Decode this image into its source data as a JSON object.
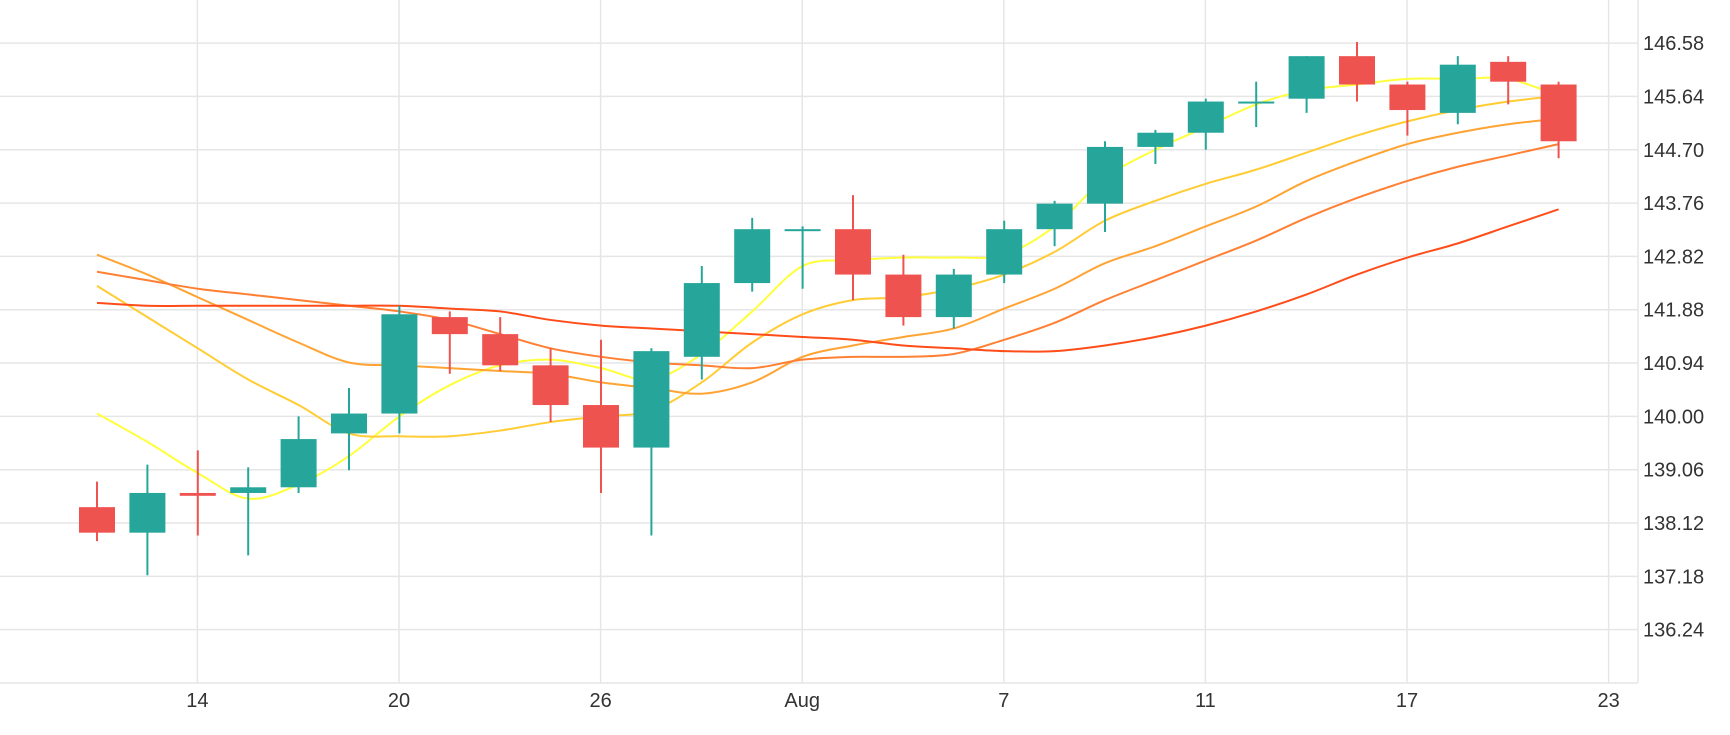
{
  "chart_data": {
    "type": "candlestick",
    "title": "",
    "xlabel": "",
    "ylabel": "",
    "grid": true,
    "legend": "none",
    "ylim": [
      135.3,
      147.34
    ],
    "y_ticks": [
      "136.24",
      "137.18",
      "138.12",
      "139.06",
      "140.00",
      "140.94",
      "141.88",
      "142.82",
      "143.76",
      "144.70",
      "145.64",
      "146.58"
    ],
    "x_ticks": [
      {
        "index": 1,
        "label": "14"
      },
      {
        "index": 5,
        "label": "20"
      },
      {
        "index": 9,
        "label": "26"
      },
      {
        "index": 13,
        "label": "Aug"
      },
      {
        "index": 17,
        "label": "7"
      },
      {
        "index": 21,
        "label": "11"
      },
      {
        "index": 25,
        "label": "17"
      },
      {
        "index": 29,
        "label": "23"
      }
    ],
    "colors": {
      "up": "#26a69a",
      "down": "#ef5350",
      "grid": "#e6e6e6"
    },
    "candles": [
      {
        "o": 138.4,
        "h": 138.85,
        "l": 137.8,
        "c": 137.95
      },
      {
        "o": 137.95,
        "h": 139.15,
        "l": 137.2,
        "c": 138.65
      },
      {
        "o": 138.65,
        "h": 139.4,
        "l": 137.9,
        "c": 138.6
      },
      {
        "o": 138.65,
        "h": 139.1,
        "l": 137.55,
        "c": 138.75
      },
      {
        "o": 138.75,
        "h": 140.0,
        "l": 138.65,
        "c": 139.6
      },
      {
        "o": 139.7,
        "h": 140.5,
        "l": 139.05,
        "c": 140.05
      },
      {
        "o": 140.05,
        "h": 141.95,
        "l": 139.7,
        "c": 141.8
      },
      {
        "o": 141.75,
        "h": 141.85,
        "l": 140.75,
        "c": 141.45
      },
      {
        "o": 141.45,
        "h": 141.75,
        "l": 140.8,
        "c": 140.9
      },
      {
        "o": 140.9,
        "h": 141.2,
        "l": 139.9,
        "c": 140.2
      },
      {
        "o": 140.2,
        "h": 141.35,
        "l": 138.65,
        "c": 139.45
      },
      {
        "o": 139.45,
        "h": 141.2,
        "l": 137.9,
        "c": 141.15
      },
      {
        "o": 141.05,
        "h": 142.65,
        "l": 140.65,
        "c": 142.35
      },
      {
        "o": 142.35,
        "h": 143.5,
        "l": 142.2,
        "c": 143.3
      },
      {
        "o": 143.3,
        "h": 143.35,
        "l": 142.25,
        "c": 143.3
      },
      {
        "o": 143.3,
        "h": 143.9,
        "l": 142.05,
        "c": 142.5
      },
      {
        "o": 142.5,
        "h": 142.85,
        "l": 141.6,
        "c": 141.75
      },
      {
        "o": 141.75,
        "h": 142.6,
        "l": 141.55,
        "c": 142.5
      },
      {
        "o": 142.5,
        "h": 143.45,
        "l": 142.35,
        "c": 143.3
      },
      {
        "o": 143.3,
        "h": 143.8,
        "l": 143.0,
        "c": 143.75
      },
      {
        "o": 143.75,
        "h": 144.85,
        "l": 143.25,
        "c": 144.75
      },
      {
        "o": 144.75,
        "h": 145.05,
        "l": 144.45,
        "c": 145.0
      },
      {
        "o": 145.0,
        "h": 145.6,
        "l": 144.7,
        "c": 145.55
      },
      {
        "o": 145.55,
        "h": 145.9,
        "l": 145.1,
        "c": 145.55
      },
      {
        "o": 145.6,
        "h": 146.35,
        "l": 145.35,
        "c": 146.35
      },
      {
        "o": 146.35,
        "h": 146.6,
        "l": 145.55,
        "c": 145.85
      },
      {
        "o": 145.85,
        "h": 145.9,
        "l": 144.95,
        "c": 145.4
      },
      {
        "o": 145.35,
        "h": 146.35,
        "l": 145.15,
        "c": 146.2
      },
      {
        "o": 146.25,
        "h": 146.35,
        "l": 145.5,
        "c": 145.9
      },
      {
        "o": 145.85,
        "h": 145.9,
        "l": 144.55,
        "c": 144.85
      }
    ],
    "moving_averages": [
      {
        "color": "#ffff3b",
        "values": [
          140.05,
          139.55,
          139.0,
          138.55,
          138.8,
          139.3,
          140.0,
          140.55,
          140.9,
          141.0,
          140.85,
          140.65,
          141.1,
          141.85,
          142.65,
          142.75,
          142.8,
          142.8,
          142.85,
          143.35,
          144.2,
          144.7,
          145.1,
          145.5,
          145.75,
          145.85,
          145.95,
          145.95,
          145.95,
          145.65
        ]
      },
      {
        "color": "#ffcc33",
        "values": [
          142.3,
          141.75,
          141.2,
          140.65,
          140.2,
          139.7,
          139.65,
          139.65,
          139.75,
          139.9,
          140.0,
          140.1,
          140.6,
          141.3,
          141.8,
          142.05,
          142.1,
          142.25,
          142.5,
          142.9,
          143.45,
          143.8,
          144.1,
          144.35,
          144.65,
          144.95,
          145.2,
          145.4,
          145.55,
          145.65
        ]
      },
      {
        "color": "#ffa333",
        "values": [
          142.85,
          142.5,
          142.1,
          141.7,
          141.3,
          140.95,
          140.9,
          140.85,
          140.8,
          140.75,
          140.6,
          140.5,
          140.4,
          140.6,
          141.05,
          141.25,
          141.4,
          141.55,
          141.9,
          142.25,
          142.7,
          143.0,
          143.35,
          143.7,
          144.15,
          144.5,
          144.8,
          145.0,
          145.15,
          145.25
        ]
      },
      {
        "color": "#ff8033",
        "values": [
          142.55,
          142.4,
          142.25,
          142.15,
          142.05,
          141.95,
          141.85,
          141.7,
          141.45,
          141.2,
          141.05,
          140.95,
          140.9,
          140.85,
          141.0,
          141.05,
          141.05,
          141.1,
          141.35,
          141.65,
          142.05,
          142.4,
          142.75,
          143.1,
          143.5,
          143.85,
          144.15,
          144.4,
          144.6,
          144.8
        ]
      },
      {
        "color": "#ff4d1a",
        "values": [
          142.0,
          141.95,
          141.95,
          141.95,
          141.95,
          141.95,
          141.95,
          141.9,
          141.85,
          141.7,
          141.6,
          141.55,
          141.5,
          141.45,
          141.4,
          141.35,
          141.25,
          141.2,
          141.15,
          141.15,
          141.25,
          141.4,
          141.6,
          141.85,
          142.15,
          142.5,
          142.8,
          143.05,
          143.35,
          143.65
        ]
      }
    ]
  }
}
